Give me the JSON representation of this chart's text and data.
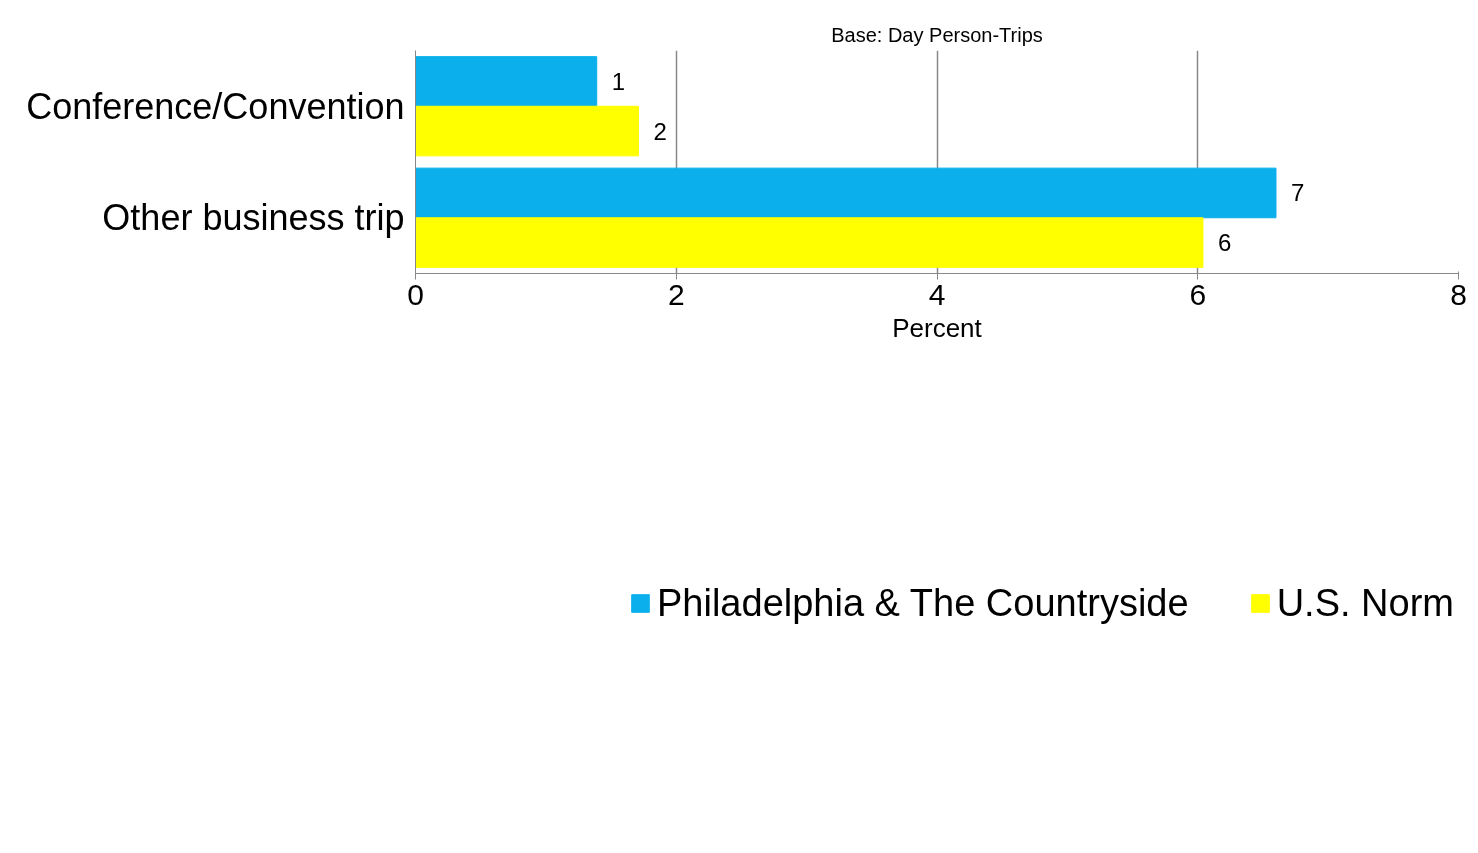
{
  "chart_data": {
    "type": "bar",
    "orientation": "horizontal",
    "title": "Base: Day Person-Trips",
    "xlabel": "Percent",
    "categories": [
      "Conference/Convention",
      "Other business trip"
    ],
    "series": [
      {
        "name": "Philadelphia & The Countryside",
        "color": "#0aafeb",
        "values": [
          1.39,
          6.6
        ],
        "value_labels": [
          "1",
          "7"
        ]
      },
      {
        "name": "U.S. Norm",
        "color": "#ffff00",
        "values": [
          1.71,
          6.04
        ],
        "value_labels": [
          "2",
          "6"
        ]
      }
    ],
    "xlim": [
      0,
      8
    ],
    "xticks": [
      0,
      2,
      4,
      6,
      8
    ],
    "grid": "x",
    "legend": "bottom"
  }
}
